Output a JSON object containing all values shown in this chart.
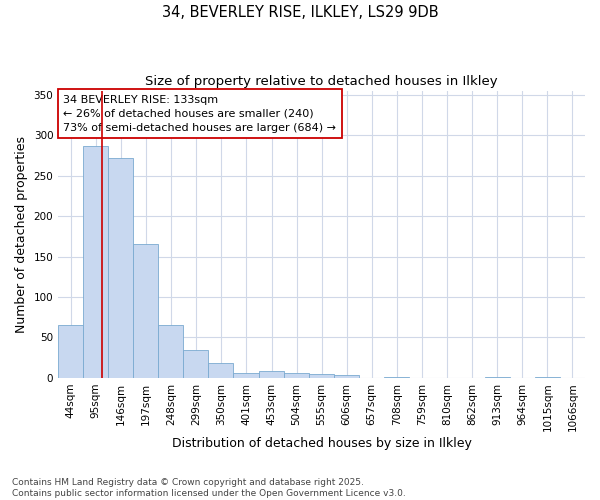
{
  "title_line1": "34, BEVERLEY RISE, ILKLEY, LS29 9DB",
  "title_line2": "Size of property relative to detached houses in Ilkley",
  "xlabel": "Distribution of detached houses by size in Ilkley",
  "ylabel": "Number of detached properties",
  "bar_color": "#c8d8f0",
  "bar_edge_color": "#7aaad0",
  "background_color": "#ffffff",
  "ax_background_color": "#ffffff",
  "grid_color": "#d0d8e8",
  "categories": [
    "44sqm",
    "95sqm",
    "146sqm",
    "197sqm",
    "248sqm",
    "299sqm",
    "350sqm",
    "401sqm",
    "453sqm",
    "504sqm",
    "555sqm",
    "606sqm",
    "657sqm",
    "708sqm",
    "759sqm",
    "810sqm",
    "862sqm",
    "913sqm",
    "964sqm",
    "1015sqm",
    "1066sqm"
  ],
  "values": [
    65,
    287,
    272,
    165,
    65,
    34,
    19,
    6,
    9,
    6,
    5,
    4,
    0,
    1,
    0,
    0,
    0,
    1,
    0,
    1,
    0
  ],
  "bin_edges": [
    44,
    95,
    146,
    197,
    248,
    299,
    350,
    401,
    453,
    504,
    555,
    606,
    657,
    708,
    759,
    810,
    862,
    913,
    964,
    1015,
    1066,
    1117
  ],
  "ylim": [
    0,
    355
  ],
  "yticks": [
    0,
    50,
    100,
    150,
    200,
    250,
    300,
    350
  ],
  "property_size": 133,
  "red_line_color": "#cc0000",
  "annotation_text": "34 BEVERLEY RISE: 133sqm\n← 26% of detached houses are smaller (240)\n73% of semi-detached houses are larger (684) →",
  "annotation_box_color": "#ffffff",
  "annotation_box_edge_color": "#cc0000",
  "footer_line1": "Contains HM Land Registry data © Crown copyright and database right 2025.",
  "footer_line2": "Contains public sector information licensed under the Open Government Licence v3.0.",
  "title_fontsize": 10.5,
  "subtitle_fontsize": 9.5,
  "tick_fontsize": 7.5,
  "label_fontsize": 9,
  "annotation_fontsize": 8,
  "footer_fontsize": 6.5
}
